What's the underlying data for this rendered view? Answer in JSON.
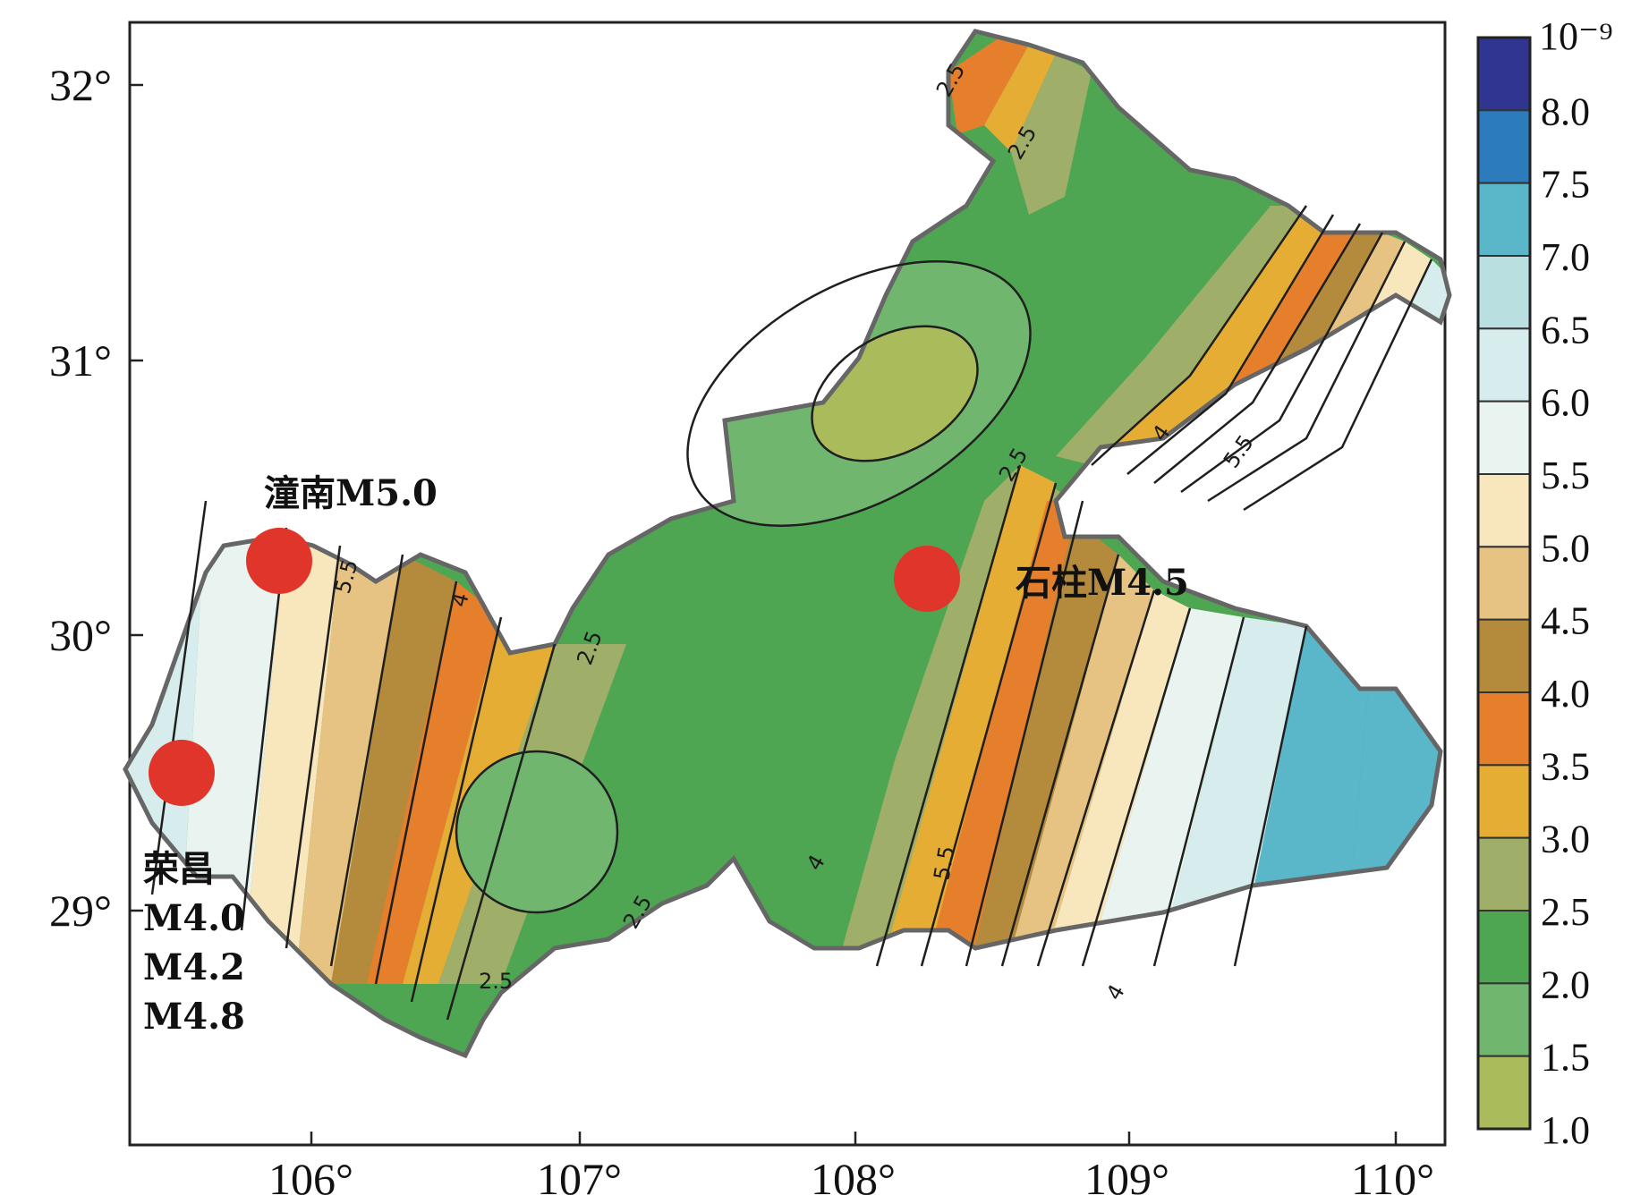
{
  "map": {
    "axes": {
      "x_ticks": [
        "106°",
        "107°",
        "108°",
        "109°",
        "110°"
      ],
      "y_ticks": [
        "32°",
        "31°",
        "30°",
        "29°"
      ]
    },
    "colorbar": {
      "unit": "10⁻⁹",
      "labels": [
        "8.0",
        "7.5",
        "7.0",
        "6.5",
        "6.0",
        "5.5",
        "5.0",
        "4.5",
        "4.0",
        "3.5",
        "3.0",
        "2.5",
        "2.0",
        "1.5",
        "1.0"
      ],
      "colors": [
        "#2f3590",
        "#2b7bbd",
        "#59b7c9",
        "#b9dfe0",
        "#d7ecec",
        "#e9f3ef",
        "#f8e6bd",
        "#e6c283",
        "#b48a3c",
        "#e57f2c",
        "#e6ad35",
        "#9fae68",
        "#4ea652",
        "#71b66f",
        "#aabb5c"
      ]
    },
    "contour_labels": [
      "2.5",
      "2.5",
      "2.5",
      "2.5",
      "2.5",
      "2.5",
      "4",
      "4",
      "4",
      "5.5",
      "5.5",
      "5.5",
      "4"
    ],
    "earthquakes": [
      {
        "label": "潼南M5.0",
        "color": "#e0352b"
      },
      {
        "label": "石柱M4.5",
        "color": "#e0352b"
      },
      {
        "label_lines": [
          "荣昌",
          "M4.0",
          "M4.2",
          "M4.8"
        ],
        "color": "#e0352b"
      }
    ]
  }
}
